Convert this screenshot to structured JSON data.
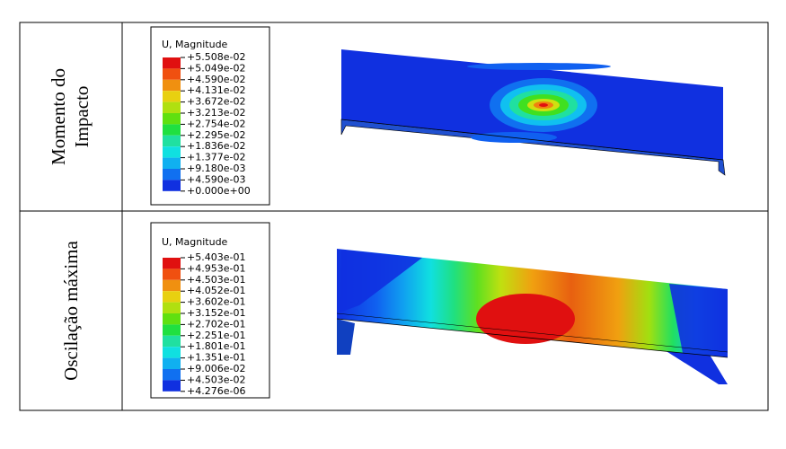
{
  "table": {
    "rows": [
      {
        "label_lines": [
          "Momento do",
          "Impacto"
        ],
        "legend": {
          "title": "U, Magnitude",
          "labels": [
            "+5.508e-02",
            "+5.049e-02",
            "+4.590e-02",
            "+4.131e-02",
            "+3.672e-02",
            "+3.213e-02",
            "+2.754e-02",
            "+2.295e-02",
            "+1.836e-02",
            "+1.377e-02",
            "+9.180e-03",
            "+4.590e-03",
            "+0.000e+00"
          ]
        }
      },
      {
        "label_lines": [
          "Oscilação máxima"
        ],
        "legend": {
          "title": "U, Magnitude",
          "labels": [
            "+5.403e-01",
            "+4.953e-01",
            "+4.503e-01",
            "+4.052e-01",
            "+3.602e-01",
            "+3.152e-01",
            "+2.702e-01",
            "+2.251e-01",
            "+1.801e-01",
            "+1.351e-01",
            "+9.006e-02",
            "+4.503e-02",
            "+4.276e-06"
          ]
        }
      }
    ]
  }
}
